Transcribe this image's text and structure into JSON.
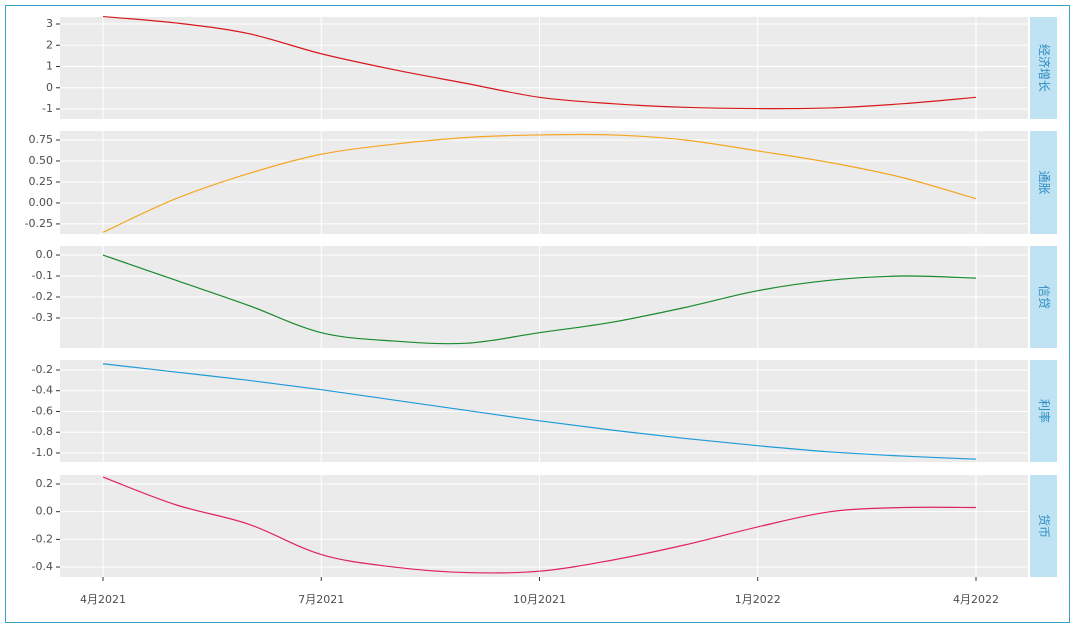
{
  "chart_data": [
    {
      "type": "line",
      "title": "经济增长",
      "color": "#d7191c",
      "x": [
        "2021-04",
        "2021-05",
        "2021-06",
        "2021-07",
        "2021-08",
        "2021-09",
        "2021-10",
        "2021-11",
        "2021-12",
        "2022-01",
        "2022-02",
        "2022-03",
        "2022-04"
      ],
      "values": [
        3.35,
        3.05,
        2.55,
        1.6,
        0.85,
        0.2,
        -0.45,
        -0.75,
        -0.92,
        -0.98,
        -0.95,
        -0.75,
        -0.45
      ],
      "ylim": [
        -1.47,
        3.33
      ],
      "yticks": [
        -1,
        0,
        1,
        2,
        3
      ],
      "grid": true
    },
    {
      "type": "line",
      "title": "通胀",
      "color": "#f5a623",
      "x": [
        "2021-04",
        "2021-05",
        "2021-06",
        "2021-07",
        "2021-08",
        "2021-09",
        "2021-10",
        "2021-11",
        "2021-12",
        "2022-01",
        "2022-02",
        "2022-03",
        "2022-04"
      ],
      "values": [
        -0.35,
        0.05,
        0.35,
        0.58,
        0.7,
        0.78,
        0.81,
        0.81,
        0.75,
        0.62,
        0.48,
        0.3,
        0.05
      ],
      "ylim": [
        -0.37,
        0.857
      ],
      "yticks": [
        -0.25,
        {
          "value": 0,
          "label": "0.00"
        },
        0.25,
        {
          "value": 0.5,
          "label": "0.50"
        },
        0.75
      ],
      "grid": true
    },
    {
      "type": "line",
      "title": "信贷",
      "color": "#1a8a2e",
      "x": [
        "2021-04",
        "2021-05",
        "2021-06",
        "2021-07",
        "2021-08",
        "2021-09",
        "2021-10",
        "2021-11",
        "2021-12",
        "2022-01",
        "2022-02",
        "2022-03",
        "2022-04"
      ],
      "values": [
        0.0,
        -0.12,
        -0.24,
        -0.37,
        -0.41,
        -0.42,
        -0.37,
        -0.32,
        -0.25,
        -0.17,
        -0.12,
        -0.1,
        -0.11
      ],
      "ylim": [
        -0.443,
        0.043
      ],
      "yticks": [
        -0.3,
        -0.2,
        -0.1,
        {
          "value": 0,
          "label": "0.0"
        }
      ],
      "grid": true
    },
    {
      "type": "line",
      "title": "利率",
      "color": "#1f9bd7",
      "x": [
        "2021-04",
        "2021-05",
        "2021-06",
        "2021-07",
        "2021-08",
        "2021-09",
        "2021-10",
        "2021-11",
        "2021-12",
        "2022-01",
        "2022-02",
        "2022-03",
        "2022-04"
      ],
      "values": [
        -0.14,
        -0.22,
        -0.3,
        -0.39,
        -0.49,
        -0.59,
        -0.69,
        -0.78,
        -0.86,
        -0.93,
        -0.99,
        -1.03,
        -1.06
      ],
      "ylim": [
        -1.087,
        -0.104
      ],
      "yticks": [
        {
          "value": -1,
          "label": "-1.0"
        },
        -0.8,
        -0.6,
        -0.4,
        -0.2
      ],
      "grid": true
    },
    {
      "type": "line",
      "title": "货币",
      "color": "#e0245e",
      "x": [
        "2021-04",
        "2021-05",
        "2021-06",
        "2021-07",
        "2021-08",
        "2021-09",
        "2021-10",
        "2021-11",
        "2021-12",
        "2022-01",
        "2022-02",
        "2022-03",
        "2022-04"
      ],
      "values": [
        0.25,
        0.05,
        -0.09,
        -0.31,
        -0.4,
        -0.44,
        -0.43,
        -0.35,
        -0.24,
        -0.11,
        0.0,
        0.03,
        0.03
      ],
      "ylim": [
        -0.472,
        0.265
      ],
      "yticks": [
        -0.4,
        -0.2,
        {
          "value": 0,
          "label": "0.0"
        },
        0.2
      ],
      "grid": true,
      "xticks": [
        {
          "value": "2021-04",
          "label": "4月2021"
        },
        {
          "value": "2021-07",
          "label": "7月2021"
        },
        {
          "value": "2021-10",
          "label": "10月2021"
        },
        {
          "value": "2022-01",
          "label": "1月2022"
        },
        {
          "value": "2022-04",
          "label": "4月2022"
        }
      ]
    }
  ]
}
